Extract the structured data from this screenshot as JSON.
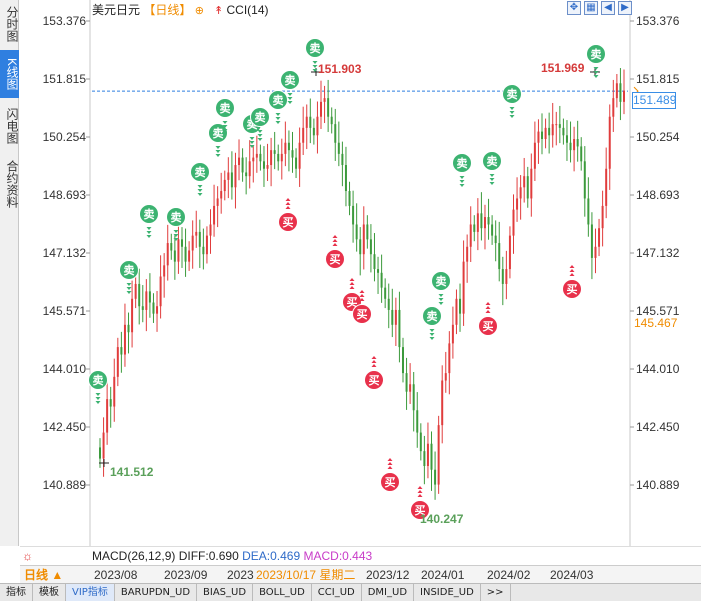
{
  "left_tabs": [
    {
      "label": "分时图",
      "active": false
    },
    {
      "label": "K线图",
      "active": true
    },
    {
      "label": "闪电图",
      "active": false
    },
    {
      "label": "合约资料",
      "active": false
    }
  ],
  "header": {
    "symbol": "美元日元",
    "period": "【日线】",
    "gear": "⊕",
    "indicator_icon": "↟",
    "indicator": "CCI(14)"
  },
  "toolbar": [
    {
      "icon": "zoom-in-icon",
      "glyph": "✥"
    },
    {
      "icon": "zoom-out-icon",
      "glyph": "▦"
    },
    {
      "icon": "left-icon",
      "glyph": "◀"
    },
    {
      "icon": "right-icon",
      "glyph": "▶"
    }
  ],
  "price_axis": {
    "labels": [
      "153.376",
      "151.815",
      "150.254",
      "148.693",
      "147.132",
      "145.571",
      "144.010",
      "142.450",
      "140.889"
    ],
    "current_price": "151.489",
    "predicted_price": "145.467",
    "reference_line": 151.489
  },
  "annotations": {
    "high1": "151.903",
    "high2": "151.969",
    "low1": "141.512",
    "low2": "140.247"
  },
  "signals": {
    "sell_label": "卖",
    "buy_label": "买"
  },
  "macd": {
    "text": "MACD(26,12,9)",
    "diff": "DIFF:0.690",
    "dea": "DEA:0.469",
    "macd": "MACD:0.443"
  },
  "date_row": {
    "period_button": "日线 ▲",
    "labels": [
      "2023/08",
      "2023/09",
      "2023",
      "2023/12",
      "2024/01",
      "2024/02",
      "2024/03"
    ],
    "cursor_date": "2023/10/17 星期二"
  },
  "indicator_tabs": [
    {
      "label": "指标",
      "active": false
    },
    {
      "label": "模板",
      "active": false
    },
    {
      "label": "VIP指标",
      "active": true
    },
    {
      "label": "BARUPDN_UD",
      "active": false
    },
    {
      "label": "BIAS_UD",
      "active": false
    },
    {
      "label": "BOLL_UD",
      "active": false
    },
    {
      "label": "CCI_UD",
      "active": false
    },
    {
      "label": "DMI_UD",
      "active": false
    },
    {
      "label": "INSIDE_UD",
      "active": false
    },
    {
      "label": ">>",
      "active": false
    }
  ],
  "colors": {
    "up": "#e03c3c",
    "down": "#3c9a3c",
    "sell_badge": "#3cb371",
    "buy_badge": "#e8314b",
    "ref_line": "#2f7fe0"
  },
  "chart_data": {
    "type": "candlestick",
    "ylim": [
      140.3,
      153.5
    ],
    "close": [
      141.6,
      142.3,
      143.2,
      143.0,
      143.8,
      144.6,
      144.4,
      145.2,
      145.0,
      145.9,
      146.3,
      145.7,
      145.6,
      146.1,
      145.8,
      145.5,
      145.7,
      146.5,
      146.8,
      147.4,
      147.2,
      146.9,
      147.5,
      147.3,
      146.9,
      147.2,
      147.6,
      147.7,
      147.3,
      147.1,
      147.6,
      147.9,
      148.4,
      148.6,
      148.8,
      149.1,
      149.3,
      148.9,
      149.5,
      149.7,
      149.3,
      149.2,
      149.6,
      149.7,
      149.8,
      149.6,
      149.4,
      149.5,
      149.9,
      149.8,
      149.6,
      149.8,
      150.1,
      149.9,
      149.7,
      149.4,
      150.1,
      150.5,
      150.8,
      150.5,
      150.3,
      150.8,
      151.2,
      151.3,
      150.8,
      150.6,
      150.1,
      149.8,
      149.5,
      148.8,
      148.4,
      147.9,
      147.5,
      147.1,
      147.9,
      147.5,
      147.1,
      146.7,
      146.6,
      146.2,
      145.9,
      145.6,
      145.2,
      145.6,
      144.6,
      143.9,
      143.4,
      143.6,
      142.9,
      142.3,
      141.8,
      141.4,
      142.0,
      141.3,
      140.9,
      142.5,
      143.7,
      143.9,
      144.7,
      145.2,
      145.9,
      145.5,
      146.9,
      147.3,
      147.9,
      147.7,
      148.2,
      147.8,
      148.1,
      147.9,
      147.6,
      147.4,
      146.7,
      146.3,
      146.7,
      147.6,
      148.3,
      148.6,
      148.9,
      149.2,
      148.6,
      149.4,
      150.1,
      150.4,
      150.2,
      150.5,
      150.3,
      150.6,
      150.6,
      150.5,
      150.3,
      150.1,
      149.9,
      150.2,
      150.0,
      149.6,
      148.6,
      147.9,
      147.0,
      147.3,
      147.8,
      148.4,
      149.4,
      150.8,
      151.3,
      151.7,
      151.2,
      151.5
    ]
  }
}
